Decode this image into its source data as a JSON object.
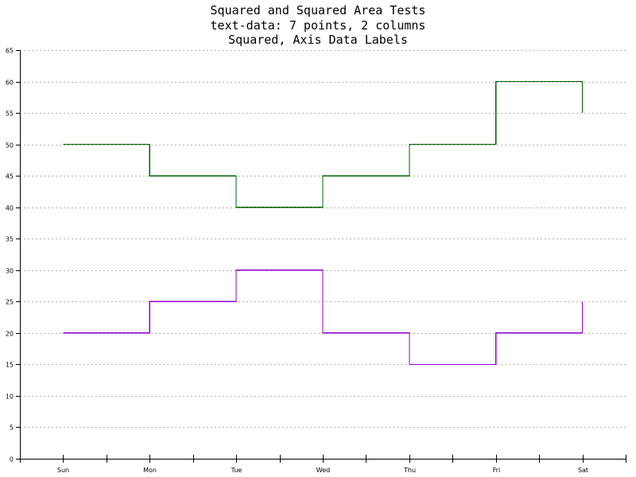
{
  "chart_data": {
    "type": "line",
    "step": true,
    "title": [
      "Squared and Squared Area Tests",
      "text-data: 7 points, 2 columns",
      "Squared, Axis Data Labels"
    ],
    "xlabel": "",
    "ylabel": "",
    "categories": [
      "Sun",
      "Mon",
      "Tue",
      "Wed",
      "Thu",
      "Fri",
      "Sat"
    ],
    "series": [
      {
        "values": [
          50,
          45,
          40,
          45,
          50,
          60,
          55
        ],
        "color": "#006400"
      },
      {
        "values": [
          20,
          25,
          30,
          20,
          15,
          20,
          25
        ],
        "color": "#9400d3"
      }
    ],
    "ylim": [
      0,
      65
    ],
    "yticks": [
      0,
      5,
      10,
      15,
      20,
      25,
      30,
      35,
      40,
      45,
      50,
      55,
      60,
      65
    ],
    "grid": true,
    "legend": "none"
  }
}
